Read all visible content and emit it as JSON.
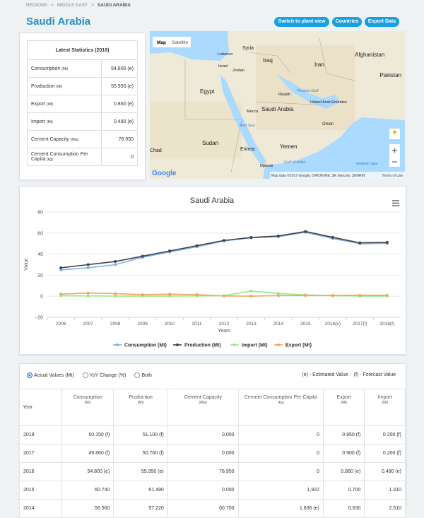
{
  "breadcrumb": [
    "REGIONS",
    "MIDDLE EAST",
    "SAUDI ARABIA"
  ],
  "title": "Saudi Arabia",
  "buttons": [
    "Switch to plant view",
    "Countries",
    "Export Data"
  ],
  "stats": {
    "title": "Latest Statistics (2016)",
    "rows": [
      {
        "label": "Consumption",
        "unit": "(Mt)",
        "value": "54.800 (e)"
      },
      {
        "label": "Production",
        "unit": "(Mt)",
        "value": "55.950 (e)"
      },
      {
        "label": "Export",
        "unit": "(Mt)",
        "value": "0.860 (e)"
      },
      {
        "label": "Import",
        "unit": "(Mt)",
        "value": "0.480 (e)"
      },
      {
        "label": "Cement Capacity",
        "unit": "(Mta)",
        "value": "78.950"
      },
      {
        "label": "Cement Consumption Per Capita",
        "unit": "(kg)",
        "value": "0"
      }
    ]
  },
  "map": {
    "tabs": [
      "Map",
      "Satellite"
    ],
    "labels": [
      "Syria",
      "Lebanon",
      "Israel",
      "Jordan",
      "Iraq",
      "Iran",
      "Afghanistan",
      "Pakistan",
      "Egypt",
      "Riyadh",
      "Saudi Arabia",
      "United Arab Emirates",
      "Mecca",
      "Oman",
      "Sudan",
      "Eritrea",
      "Yemen",
      "Chad",
      "Djibouti"
    ],
    "seas": [
      "Red Sea",
      "Persian Gulf",
      "Gulf of Aden",
      "Arabian Sea"
    ],
    "logo": "Google",
    "attribution": "Map data ©2017 Google, ORION-ME, SK telecom, ZENRIN",
    "terms": "Terms of Use"
  },
  "chart_data": {
    "type": "line",
    "title": "Saudi Arabia",
    "x_label": "Years",
    "y_label": "Value",
    "categories": [
      "2006",
      "2007",
      "2008",
      "2009",
      "2010",
      "2011",
      "2012",
      "2013",
      "2014",
      "2015",
      "2016(e)",
      "2017(f)",
      "2018(f)"
    ],
    "series": [
      {
        "name": "Consumption (Mt)",
        "color": "#7cb5ec",
        "values": [
          25,
          27,
          30,
          37,
          42,
          47,
          52.5,
          55.5,
          56.56,
          60.74,
          54.8,
          49.86,
          50.15
        ]
      },
      {
        "name": "Production (Mt)",
        "color": "#434348",
        "values": [
          27,
          30,
          33,
          38,
          43,
          48,
          53,
          55.8,
          57.22,
          61.49,
          55.95,
          50.76,
          51.1
        ]
      },
      {
        "name": "Import (Mt)",
        "color": "#90ed7d",
        "values": [
          0.5,
          0.3,
          0.2,
          0.2,
          0.2,
          0.3,
          0.5,
          5,
          2.51,
          1.31,
          0.48,
          0.2,
          0.2
        ]
      },
      {
        "name": "Export (Mt)",
        "color": "#f7a35c",
        "values": [
          2,
          3,
          2.5,
          1.5,
          2,
          1.5,
          0.3,
          0.1,
          0.63,
          0.7,
          0.86,
          0.9,
          0.95
        ]
      }
    ],
    "ylim": [
      -20,
      80
    ],
    "yticks": [
      {
        "value": -20,
        "label": "−20"
      },
      0,
      20,
      40,
      60,
      80
    ],
    "grid": true,
    "legend": "bottom"
  },
  "table": {
    "options": [
      "Actual Values (Mt)",
      "YoY Change (%)",
      "Both"
    ],
    "notes": [
      "(e) - Estimated Value",
      "(f) - Forecast Value"
    ],
    "columns": [
      {
        "name": "Year"
      },
      {
        "name": "Consumption",
        "unit": "(Mt)"
      },
      {
        "name": "Production",
        "unit": "(Mt)"
      },
      {
        "name": "Cement Capacity",
        "unit": "(Mta)"
      },
      {
        "name": "Cement Consumption Per Capita",
        "unit": "(kg)"
      },
      {
        "name": "Export",
        "unit": "(Mt)"
      },
      {
        "name": "Import",
        "unit": "(Mt)"
      }
    ],
    "rows": [
      [
        "2018",
        "50.150 (f)",
        "51.100 (f)",
        "0.000",
        "0",
        "0.950 (f)",
        "0.200 (f)"
      ],
      [
        "2017",
        "49.860 (f)",
        "50.760 (f)",
        "0.000",
        "0",
        "0.900 (f)",
        "0.200 (f)"
      ],
      [
        "2016",
        "54.800 (e)",
        "55.950 (e)",
        "78.950",
        "0",
        "0.860 (e)",
        "0.480 (e)"
      ],
      [
        "2015",
        "60.740",
        "61.490",
        "0.000",
        "1,922",
        "0.700",
        "1.310"
      ],
      [
        "2014",
        "56.560",
        "57.220",
        "60.700",
        "1,836 (e)",
        "0.630",
        "2.510"
      ]
    ]
  }
}
